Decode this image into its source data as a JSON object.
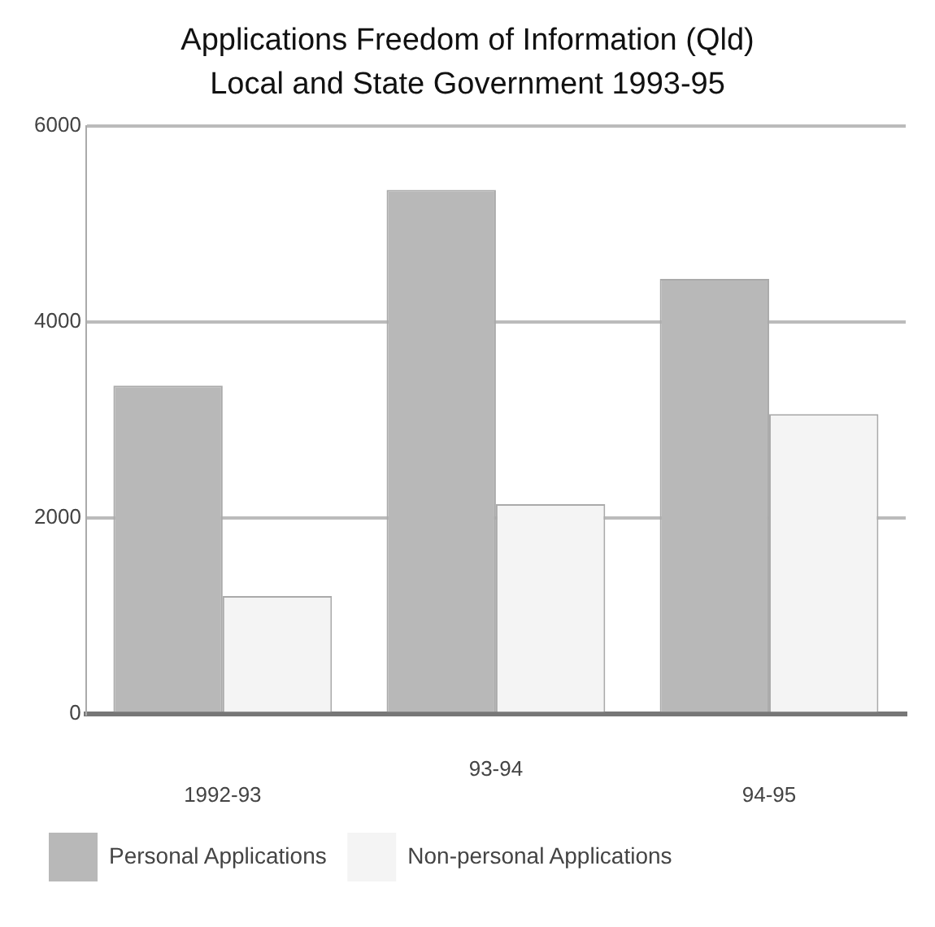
{
  "chart_data": {
    "type": "bar",
    "title": "Applications Freedom of Information (Qld)",
    "subtitle": "Local and State Government 1993-95",
    "categories": [
      "1992-93",
      "93-94",
      "94-95"
    ],
    "series": [
      {
        "name": "Personal Applications",
        "color": "#b8b8b8",
        "values": [
          3350,
          5350,
          4440
        ]
      },
      {
        "name": "Non-personal Applications",
        "color": "#f4f4f4",
        "values": [
          1200,
          2140,
          3060
        ]
      }
    ],
    "ylim": [
      0,
      6000
    ],
    "yticks": [
      0,
      2000,
      4000,
      6000
    ],
    "grid": "y",
    "legend": "bottom"
  }
}
